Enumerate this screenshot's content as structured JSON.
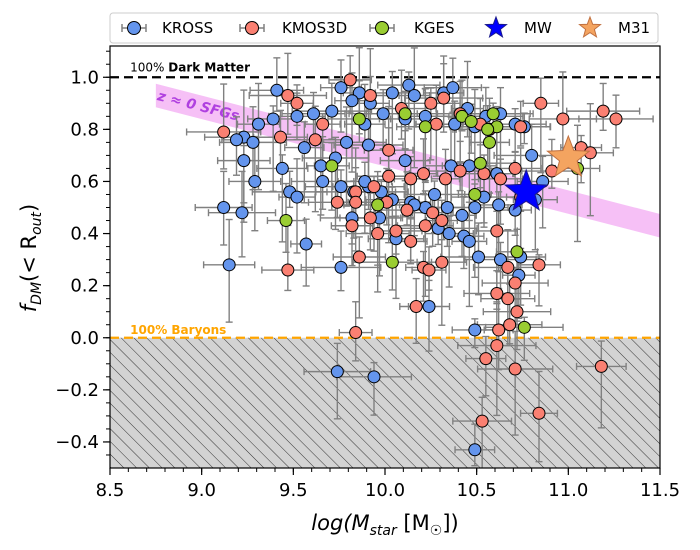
{
  "chart_data": {
    "type": "scatter",
    "xlim": [
      8.5,
      11.5
    ],
    "ylim": [
      -0.5,
      1.12
    ],
    "xticks": [
      "8.5",
      "9.0",
      "9.5",
      "10.0",
      "10.5",
      "11.0",
      "11.5"
    ],
    "yticks": [
      "−0.4",
      "−0.2",
      "0.0",
      "0.2",
      "0.4",
      "0.6",
      "0.8",
      "1.0"
    ],
    "xlabel": "log(M",
    "xlabel_sub": "star",
    "xlabel_unit": " [M",
    "xlabel_unit_sub": "☉",
    "xlabel_end": "])",
    "ylabel": "f",
    "ylabel_sub": "DM",
    "ylabel_rest": "(< R",
    "ylabel_rest_sub": "out",
    "ylabel_end": ")",
    "legend_position": "top",
    "legend": [
      "KROSS",
      "KMOS3D",
      "KGES",
      "MW",
      "M31"
    ],
    "annotations": {
      "dark_matter_prefix": "100% ",
      "dark_matter": "Dark Matter",
      "baryons": "100% Baryons",
      "sfg_band": "z ≈ 0 SFGs"
    },
    "colors": {
      "kross": "#6495ed",
      "kmos3d": "#fa8072",
      "kges": "#9acd32",
      "mw": "#0000ff",
      "m31": "#f4a460",
      "band": "#ee82ee",
      "baryon_line": "#ffa500",
      "errorbar": "#808080"
    },
    "sfg_band": {
      "x": [
        8.75,
        11.5
      ],
      "y_center": [
        0.93,
        0.43
      ],
      "half_width": 0.045
    },
    "mw": {
      "x": 10.77,
      "y": 0.56
    },
    "m31": {
      "x": 11.0,
      "y": 0.69
    },
    "series": [
      {
        "name": "KROSS",
        "points": [
          [
            9.41,
            0.95
          ],
          [
            9.76,
            0.96
          ],
          [
            9.86,
            0.94
          ],
          [
            10.04,
            0.94
          ],
          [
            10.13,
            0.97
          ],
          [
            10.32,
            0.94
          ],
          [
            10.37,
            0.96
          ],
          [
            10.16,
            0.93
          ],
          [
            9.82,
            0.91
          ],
          [
            9.92,
            0.9
          ],
          [
            9.61,
            0.86
          ],
          [
            9.71,
            0.87
          ],
          [
            9.52,
            0.85
          ],
          [
            9.99,
            0.86
          ],
          [
            10.45,
            0.88
          ],
          [
            10.55,
            0.85
          ],
          [
            10.63,
            0.86
          ],
          [
            10.71,
            0.82
          ],
          [
            10.76,
            0.81
          ],
          [
            10.49,
            0.81
          ],
          [
            10.38,
            0.82
          ],
          [
            10.22,
            0.85
          ],
          [
            10.11,
            0.84
          ],
          [
            9.89,
            0.82
          ],
          [
            9.31,
            0.82
          ],
          [
            9.23,
            0.77
          ],
          [
            9.28,
            0.75
          ],
          [
            9.19,
            0.76
          ],
          [
            9.56,
            0.73
          ],
          [
            9.73,
            0.69
          ],
          [
            9.65,
            0.66
          ],
          [
            9.44,
            0.65
          ],
          [
            9.29,
            0.6
          ],
          [
            9.23,
            0.68
          ],
          [
            9.48,
            0.56
          ],
          [
            9.52,
            0.54
          ],
          [
            9.66,
            0.6
          ],
          [
            9.76,
            0.58
          ],
          [
            9.83,
            0.56
          ],
          [
            9.91,
            0.58
          ],
          [
            9.98,
            0.56
          ],
          [
            10.04,
            0.53
          ],
          [
            10.14,
            0.52
          ],
          [
            10.22,
            0.5
          ],
          [
            10.27,
            0.55
          ],
          [
            10.34,
            0.5
          ],
          [
            10.42,
            0.47
          ],
          [
            10.49,
            0.5
          ],
          [
            10.54,
            0.54
          ],
          [
            10.62,
            0.51
          ],
          [
            10.71,
            0.49
          ],
          [
            10.82,
            0.53
          ],
          [
            10.86,
            0.6
          ],
          [
            10.8,
            0.7
          ],
          [
            10.61,
            0.63
          ],
          [
            10.46,
            0.66
          ],
          [
            10.36,
            0.66
          ],
          [
            10.11,
            0.68
          ],
          [
            9.91,
            0.74
          ],
          [
            9.79,
            0.75
          ],
          [
            9.39,
            0.84
          ],
          [
            9.12,
            0.5
          ],
          [
            9.22,
            0.48
          ],
          [
            9.15,
            0.28
          ],
          [
            9.57,
            0.36
          ],
          [
            9.76,
            0.27
          ],
          [
            9.82,
            0.46
          ],
          [
            10.06,
            0.38
          ],
          [
            10.29,
            0.42
          ],
          [
            10.35,
            0.4
          ],
          [
            10.43,
            0.39
          ],
          [
            10.51,
            0.31
          ],
          [
            10.63,
            0.3
          ],
          [
            10.74,
            0.31
          ],
          [
            10.73,
            0.24
          ],
          [
            10.24,
            0.12
          ],
          [
            10.49,
            0.03
          ],
          [
            9.74,
            -0.13
          ],
          [
            9.94,
            -0.15
          ],
          [
            10.49,
            -0.43
          ],
          [
            10.46,
            0.37
          ],
          [
            10.16,
            0.51
          ],
          [
            9.97,
            0.46
          ],
          [
            9.89,
            0.6
          ]
        ]
      },
      {
        "name": "KMOS3D",
        "points": [
          [
            9.12,
            0.79
          ],
          [
            9.47,
            0.93
          ],
          [
            9.52,
            0.9
          ],
          [
            9.62,
            0.76
          ],
          [
            9.81,
            0.99
          ],
          [
            9.92,
            0.93
          ],
          [
            10.09,
            0.88
          ],
          [
            10.25,
            0.9
          ],
          [
            10.32,
            0.92
          ],
          [
            10.41,
            0.86
          ],
          [
            10.52,
            0.82
          ],
          [
            10.57,
            0.8
          ],
          [
            10.74,
            0.81
          ],
          [
            10.85,
            0.9
          ],
          [
            10.97,
            0.84
          ],
          [
            11.19,
            0.87
          ],
          [
            11.26,
            0.84
          ],
          [
            11.07,
            0.73
          ],
          [
            11.12,
            0.71
          ],
          [
            10.91,
            0.64
          ],
          [
            10.71,
            0.65
          ],
          [
            10.63,
            0.61
          ],
          [
            10.54,
            0.63
          ],
          [
            10.41,
            0.64
          ],
          [
            10.33,
            0.61
          ],
          [
            10.21,
            0.63
          ],
          [
            10.14,
            0.61
          ],
          [
            10.02,
            0.62
          ],
          [
            9.94,
            0.58
          ],
          [
            9.84,
            0.56
          ],
          [
            9.74,
            0.52
          ],
          [
            9.84,
            0.52
          ],
          [
            9.92,
            0.46
          ],
          [
            10.01,
            0.52
          ],
          [
            10.12,
            0.49
          ],
          [
            10.26,
            0.48
          ],
          [
            10.31,
            0.45
          ],
          [
            10.22,
            0.43
          ],
          [
            10.14,
            0.37
          ],
          [
            10.21,
            0.27
          ],
          [
            10.24,
            0.26
          ],
          [
            10.31,
            0.29
          ],
          [
            10.06,
            0.41
          ],
          [
            9.96,
            0.4
          ],
          [
            9.86,
            0.31
          ],
          [
            9.82,
            0.43
          ],
          [
            9.47,
            0.26
          ],
          [
            9.43,
            0.77
          ],
          [
            10.67,
            0.27
          ],
          [
            10.71,
            0.21
          ],
          [
            10.72,
            0.1
          ],
          [
            10.84,
            0.28
          ],
          [
            10.61,
            0.17
          ],
          [
            10.67,
            0.15
          ],
          [
            10.62,
            0.03
          ],
          [
            10.68,
            0.05
          ],
          [
            10.61,
            -0.03
          ],
          [
            10.55,
            -0.08
          ],
          [
            10.71,
            -0.12
          ],
          [
            11.18,
            -0.11
          ],
          [
            10.84,
            -0.29
          ],
          [
            10.53,
            -0.32
          ],
          [
            10.17,
            0.12
          ],
          [
            9.84,
            0.02
          ],
          [
            10.74,
            0.54
          ],
          [
            10.61,
            0.41
          ],
          [
            10.28,
            0.82
          ],
          [
            10.02,
            0.72
          ],
          [
            9.66,
            0.82
          ]
        ]
      },
      {
        "name": "KGES",
        "points": [
          [
            10.42,
            0.85
          ],
          [
            10.47,
            0.83
          ],
          [
            10.59,
            0.86
          ],
          [
            10.57,
            0.75
          ],
          [
            10.61,
            0.81
          ],
          [
            10.49,
            0.55
          ],
          [
            10.22,
            0.81
          ],
          [
            10.11,
            0.86
          ],
          [
            9.86,
            0.84
          ],
          [
            9.71,
            0.66
          ],
          [
            9.96,
            0.51
          ],
          [
            10.04,
            0.29
          ],
          [
            9.46,
            0.45
          ],
          [
            10.56,
            0.8
          ],
          [
            10.72,
            0.33
          ],
          [
            10.76,
            0.04
          ],
          [
            11.05,
            0.65
          ],
          [
            10.52,
            0.67
          ]
        ]
      }
    ]
  }
}
